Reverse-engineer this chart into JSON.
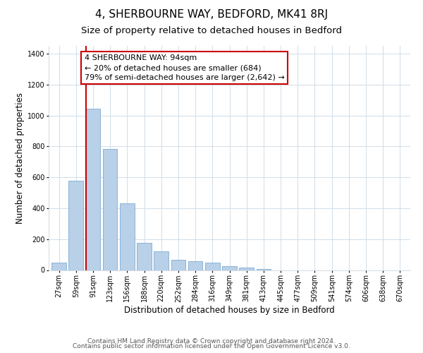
{
  "title": "4, SHERBOURNE WAY, BEDFORD, MK41 8RJ",
  "subtitle": "Size of property relative to detached houses in Bedford",
  "xlabel": "Distribution of detached houses by size in Bedford",
  "ylabel": "Number of detached properties",
  "bar_values": [
    50,
    580,
    1045,
    785,
    430,
    178,
    120,
    65,
    55,
    50,
    25,
    15,
    8,
    0,
    0,
    0,
    0,
    0,
    0,
    0,
    0
  ],
  "bar_labels": [
    "27sqm",
    "59sqm",
    "91sqm",
    "123sqm",
    "156sqm",
    "188sqm",
    "220sqm",
    "252sqm",
    "284sqm",
    "316sqm",
    "349sqm",
    "381sqm",
    "413sqm",
    "445sqm",
    "477sqm",
    "509sqm",
    "541sqm",
    "574sqm",
    "606sqm",
    "638sqm",
    "670sqm"
  ],
  "bar_color": "#b8d0e8",
  "bar_edge_color": "#6ba0c8",
  "highlight_bar_index": 2,
  "highlight_line_color": "#cc0000",
  "annotation_line1": "4 SHERBOURNE WAY: 94sqm",
  "annotation_line2": "← 20% of detached houses are smaller (684)",
  "annotation_line3": "79% of semi-detached houses are larger (2,642) →",
  "annotation_box_color": "#ffffff",
  "annotation_box_edge_color": "#cc0000",
  "ylim": [
    0,
    1450
  ],
  "yticks": [
    0,
    200,
    400,
    600,
    800,
    1000,
    1200,
    1400
  ],
  "footer_line1": "Contains HM Land Registry data © Crown copyright and database right 2024.",
  "footer_line2": "Contains public sector information licensed under the Open Government Licence v3.0.",
  "background_color": "#ffffff",
  "grid_color": "#d0dde8",
  "title_fontsize": 11,
  "subtitle_fontsize": 9.5,
  "axis_label_fontsize": 8.5,
  "tick_fontsize": 7,
  "annotation_fontsize": 8,
  "footer_fontsize": 6.5
}
